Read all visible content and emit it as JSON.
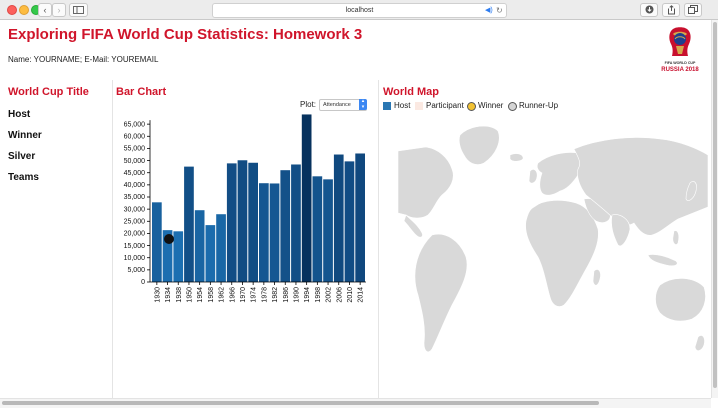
{
  "browser": {
    "url": "localhost",
    "back_icon": "chevron-left-icon",
    "forward_icon": "chevron-right-icon",
    "sidebar_icon": "sidebar-icon",
    "audio_icon": "speaker-icon",
    "reload_icon": "reload-icon",
    "download_icon": "download-icon",
    "share_icon": "share-icon",
    "tabs_icon": "tabs-icon"
  },
  "page": {
    "title": "Exploring FIFA World Cup Statistics: Homework 3",
    "user_info": "Name: YOURNAME; E-Mail: YOUREMAIL",
    "logo": {
      "line1": "FIFA WORLD CUP",
      "line2": "RUSSIA 2018"
    }
  },
  "sections": {
    "world_cup_title": "World Cup Title",
    "bar_chart": "Bar Chart",
    "world_map": "World Map"
  },
  "details": {
    "host": "Host",
    "winner": "Winner",
    "silver": "Silver",
    "teams": "Teams"
  },
  "plot_control": {
    "label": "Plot:",
    "selected": "Attendance"
  },
  "legend": {
    "host": "Host",
    "participant": "Participant",
    "winner": "Winner",
    "runner_up": "Runner-Up"
  },
  "colors": {
    "title_red": "#d0152b",
    "bar_light": "#1c6fb1",
    "bar_dark": "#0a3565",
    "selected_bar": "#07325e",
    "host": "#2a77b3",
    "participant": "#fbe9e2",
    "winner": "#f2c233",
    "runner_up": "#d5d5d5",
    "land": "#d9d9d9"
  },
  "chart_data": {
    "type": "bar",
    "categories": [
      "1930",
      "1934",
      "1938",
      "1950",
      "1954",
      "1958",
      "1962",
      "1966",
      "1970",
      "1974",
      "1978",
      "1982",
      "1986",
      "1990",
      "1994",
      "1998",
      "2002",
      "2006",
      "2010",
      "2014"
    ],
    "values": [
      32808,
      21353,
      20872,
      47511,
      29562,
      23423,
      27911,
      48847,
      50124,
      49099,
      40679,
      40572,
      46039,
      48389,
      68991,
      43517,
      42269,
      52491,
      49670,
      52918
    ],
    "selected_category": "1994",
    "title": "",
    "xlabel": "",
    "ylabel": "",
    "ylim": [
      0,
      70000
    ],
    "yticks": [
      0,
      5000,
      10000,
      15000,
      20000,
      25000,
      30000,
      35000,
      40000,
      45000,
      50000,
      55000,
      60000,
      65000
    ],
    "ytick_labels": [
      "0",
      "5,000",
      "10,000",
      "15,000",
      "20,000",
      "25,000",
      "30,000",
      "35,000",
      "40,000",
      "45,000",
      "50,000",
      "55,000",
      "60,000",
      "65,000"
    ],
    "grid": false
  }
}
